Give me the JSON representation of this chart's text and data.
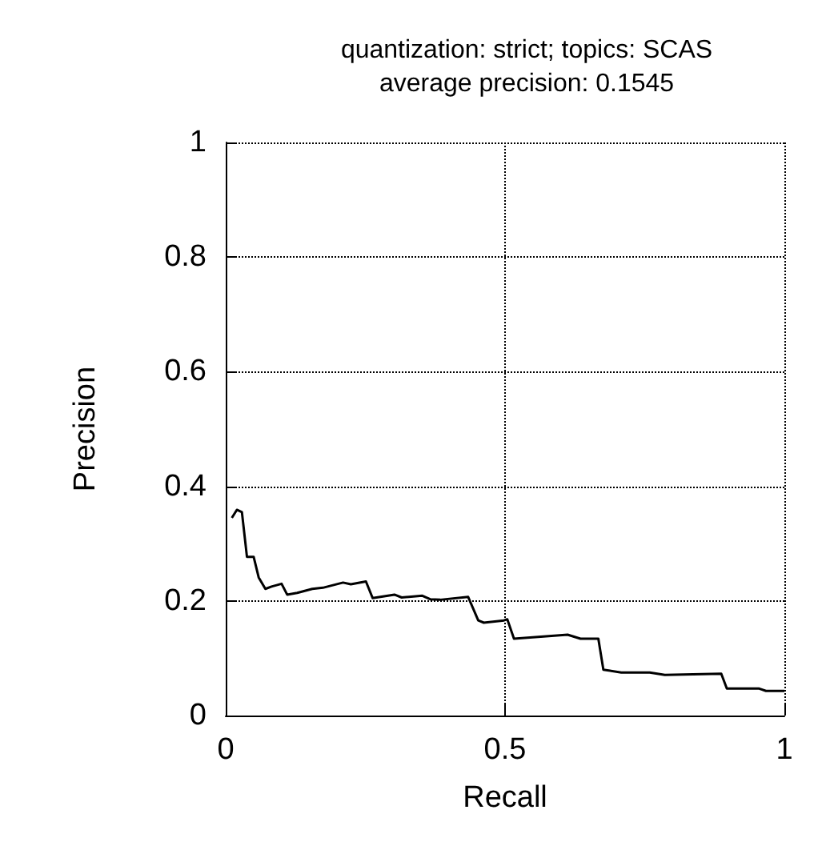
{
  "chart_data": {
    "type": "line",
    "title": "quantization: strict; topics: SCAS\naverage precision: 0.1545",
    "xlabel": "Recall",
    "ylabel": "Precision",
    "x": [
      0.011,
      0.02,
      0.029,
      0.038,
      0.05,
      0.059,
      0.071,
      0.082,
      0.1,
      0.11,
      0.128,
      0.155,
      0.174,
      0.21,
      0.224,
      0.251,
      0.263,
      0.302,
      0.315,
      0.352,
      0.366,
      0.384,
      0.434,
      0.452,
      0.462,
      0.498,
      0.504,
      0.516,
      0.612,
      0.635,
      0.667,
      0.676,
      0.708,
      0.759,
      0.786,
      0.887,
      0.897,
      0.955,
      0.967,
      1.0
    ],
    "series": [
      {
        "color": "#000000",
        "values": [
          0.345,
          0.359,
          0.355,
          0.277,
          0.277,
          0.241,
          0.221,
          0.225,
          0.23,
          0.211,
          0.214,
          0.221,
          0.223,
          0.232,
          0.229,
          0.234,
          0.205,
          0.211,
          0.206,
          0.209,
          0.203,
          0.202,
          0.207,
          0.166,
          0.162,
          0.166,
          0.168,
          0.134,
          0.141,
          0.134,
          0.134,
          0.08,
          0.075,
          0.075,
          0.071,
          0.073,
          0.047,
          0.047,
          0.043,
          0.043
        ]
      }
    ],
    "xlim": [
      0,
      1
    ],
    "xticks": [
      0,
      0.5,
      1
    ],
    "ylim": [
      0,
      1
    ],
    "yticks": [
      0,
      0.2,
      0.4,
      0.6,
      0.8,
      1
    ],
    "grid": true,
    "marker": "none",
    "line_style": "solid"
  }
}
